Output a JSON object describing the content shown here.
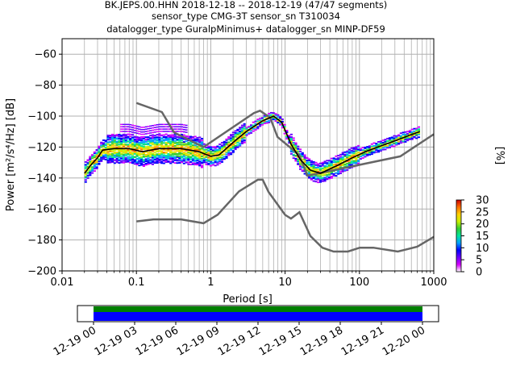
{
  "title_lines": [
    "BK.JEPS.00.HHN   2018-12-18 -- 2018-12-19  (47/47 segments)",
    "sensor_type CMG-3T sensor_sn T310034",
    "datalogger_type GuralpMinimus+ datalogger_sn MINP-DF59"
  ],
  "colors": {
    "model_curve": "#666666",
    "mean_curve": "#000000",
    "coverage_top": "#008000",
    "coverage_bottom": "#0000ff",
    "grid": "#b0b0b0"
  },
  "chart_data": {
    "type": "heatmap",
    "subtype": "probabilistic power spectral density",
    "xlabel": "Period [s]",
    "ylabel": "Power [m²/s⁴/Hz] [dB]",
    "xscale": "log",
    "xlim": [
      0.01,
      1000
    ],
    "ylim": [
      -200,
      -50
    ],
    "xticks": [
      0.01,
      0.1,
      1,
      10,
      100,
      1000
    ],
    "xtick_labels": [
      "0.01",
      "0.1",
      "1",
      "10",
      "100",
      "1000"
    ],
    "yticks": [
      -200,
      -180,
      -160,
      -140,
      -120,
      -100,
      -80,
      -60
    ],
    "ytick_labels": [
      "−200",
      "−180",
      "−160",
      "−140",
      "−120",
      "−100",
      "−80",
      "−60"
    ],
    "grid": true,
    "colorbar": {
      "label": "[%]",
      "min": 0,
      "max": 30,
      "ticks": [
        0,
        5,
        10,
        15,
        20,
        25,
        30
      ],
      "tick_labels": [
        "0",
        "5",
        "10",
        "15",
        "20",
        "25",
        "30"
      ],
      "colors": [
        "#ffffff",
        "#d600ff",
        "#6a00ff",
        "#0000ff",
        "#00a0ff",
        "#00e6a0",
        "#32cd32",
        "#c8f000",
        "#ffd000",
        "#ff7000",
        "#cc0000"
      ]
    },
    "high_noise_model": [
      [
        0.1,
        -91.5
      ],
      [
        0.22,
        -97.4
      ],
      [
        0.32,
        -110.5
      ],
      [
        0.8,
        -120
      ],
      [
        3.8,
        -98
      ],
      [
        4.6,
        -96.5
      ],
      [
        6.3,
        -101
      ],
      [
        7.9,
        -113.5
      ],
      [
        15.4,
        -125
      ],
      [
        20,
        -138.5
      ],
      [
        354.8,
        -126
      ],
      [
        1000,
        -111.7
      ]
    ],
    "low_noise_model": [
      [
        0.1,
        -168
      ],
      [
        0.17,
        -166.7
      ],
      [
        0.4,
        -166.7
      ],
      [
        0.8,
        -169.2
      ],
      [
        1.24,
        -163.7
      ],
      [
        2.4,
        -148.6
      ],
      [
        4.3,
        -141.1
      ],
      [
        5,
        -141.1
      ],
      [
        6,
        -149
      ],
      [
        10,
        -163.8
      ],
      [
        12,
        -166.2
      ],
      [
        15.6,
        -162.1
      ],
      [
        21.9,
        -177.5
      ],
      [
        31.6,
        -185
      ],
      [
        45,
        -187.5
      ],
      [
        70,
        -187.5
      ],
      [
        101,
        -185
      ],
      [
        154,
        -185
      ],
      [
        328,
        -187.5
      ],
      [
        600,
        -184.4
      ],
      [
        1000,
        -178
      ]
    ],
    "mean_psd": [
      [
        0.02,
        -137
      ],
      [
        0.025,
        -131
      ],
      [
        0.03,
        -127
      ],
      [
        0.035,
        -122
      ],
      [
        0.05,
        -121
      ],
      [
        0.08,
        -121
      ],
      [
        0.12,
        -123
      ],
      [
        0.2,
        -121
      ],
      [
        0.4,
        -121
      ],
      [
        0.7,
        -123
      ],
      [
        1.0,
        -126
      ],
      [
        1.3,
        -125
      ],
      [
        2,
        -117
      ],
      [
        3,
        -110
      ],
      [
        5,
        -103
      ],
      [
        7,
        -100
      ],
      [
        9,
        -104
      ],
      [
        12,
        -118
      ],
      [
        16,
        -128
      ],
      [
        22,
        -135
      ],
      [
        30,
        -137
      ],
      [
        50,
        -132
      ],
      [
        80,
        -127
      ],
      [
        120,
        -123
      ],
      [
        200,
        -119
      ],
      [
        300,
        -116
      ],
      [
        500,
        -112
      ],
      [
        650,
        -110
      ]
    ],
    "coverage": {
      "x_start": "12-19 00",
      "x_end": "12-20 00",
      "tick_labels": [
        "12-19 00",
        "12-19 03",
        "12-19 06",
        "12-19 09",
        "12-19 12",
        "12-19 15",
        "12-19 18",
        "12-19 21",
        "12-20 00"
      ],
      "data_coverage_fraction": 1.0,
      "segments_coverage_fraction": 1.0
    }
  }
}
